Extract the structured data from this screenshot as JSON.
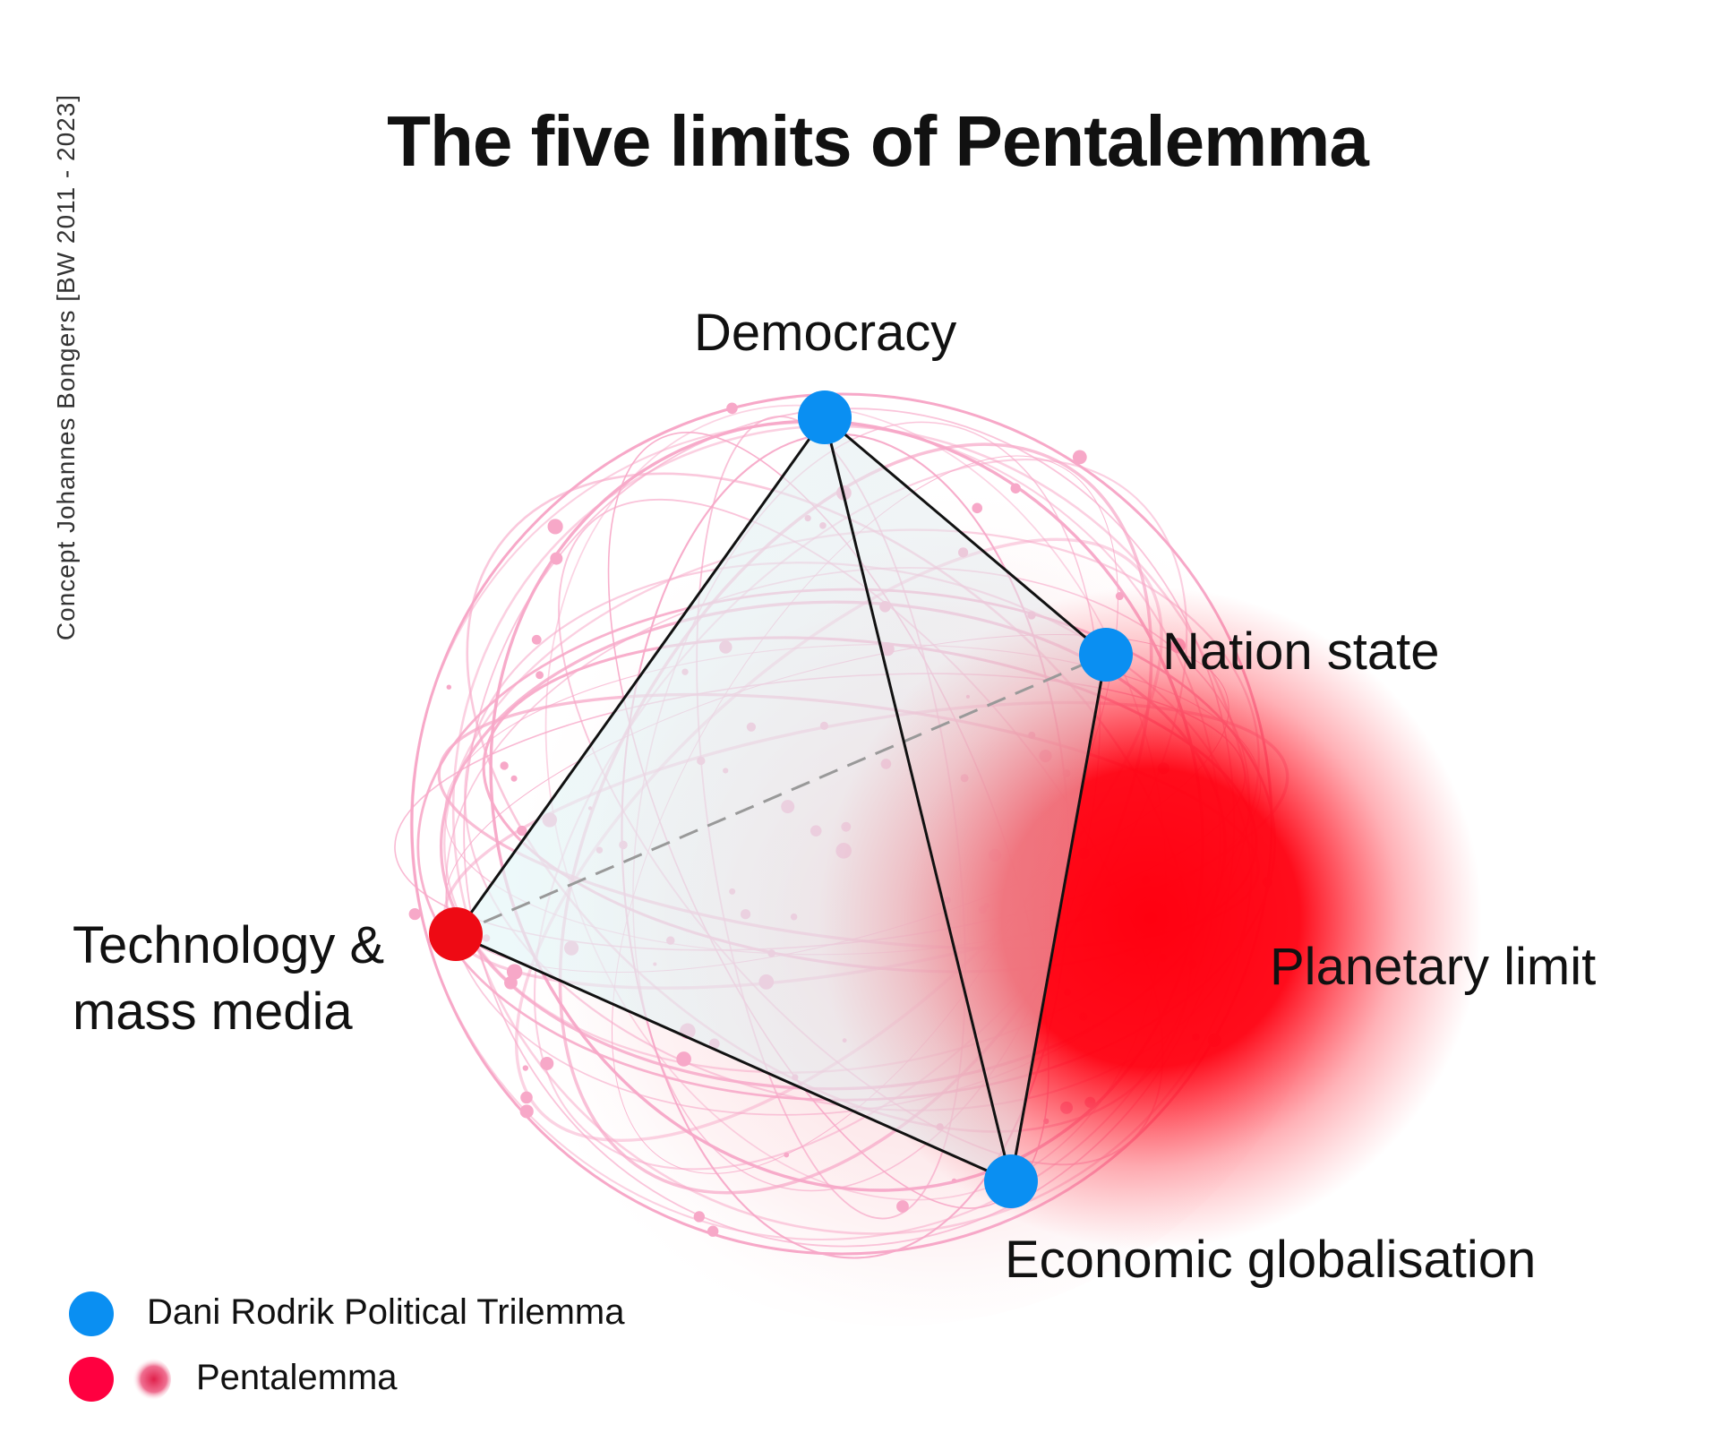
{
  "title": "The five limits of Pentalemma",
  "credit": "Concept  Johannes Bongers  [BW 2011 - 2023]",
  "nodes": {
    "democracy": {
      "label": "Democracy",
      "color": "#0a8ff2"
    },
    "nation_state": {
      "label": "Nation state",
      "color": "#0a8ff2"
    },
    "economic_globalisation": {
      "label": "Economic globalisation",
      "color": "#0a8ff2"
    },
    "technology": {
      "label_line1": "Technology &",
      "label_line2": "mass media",
      "color": "#ee0a14"
    },
    "planetary_limit": {
      "label": "Planetary limit",
      "color": "#ff0010"
    }
  },
  "legend": [
    {
      "label": "Dani Rodrik Political Trilemma",
      "color": "#0a8ff2"
    },
    {
      "label": "Pentalemma",
      "color": "#ff0040"
    }
  ],
  "colors": {
    "sphere_lines": "#f7a8c8",
    "tetra_fill": "#e6f6f8",
    "edges": "#111111"
  }
}
